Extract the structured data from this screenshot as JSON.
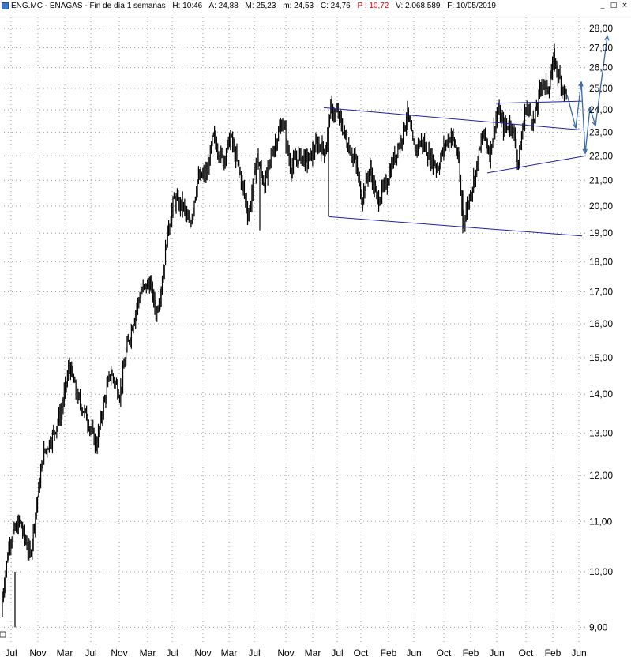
{
  "window": {
    "ticker": "ENG.MC - ENAGAS - Fin de día 1 semanas",
    "H": "H: 10:46",
    "A": "A: 24,88",
    "M": "M: 25,23",
    "m": "m: 24,53",
    "C": "C: 24,76",
    "P": "P : 10,72",
    "V": "V: 2.068.589",
    "F": "F: 10/05/2019",
    "controls": [
      "_",
      "□",
      "×"
    ]
  },
  "chart_data": {
    "type": "candlestick",
    "title": "ENG.MC - ENAGAS",
    "scale": "log",
    "ylim": [
      8.7,
      28.6
    ],
    "ytick_values": [
      9,
      10,
      11,
      12,
      13,
      14,
      15,
      16,
      17,
      18,
      19,
      20,
      21,
      22,
      23,
      24,
      25,
      26,
      27,
      28
    ],
    "ytick_labels": [
      "9,00",
      "10,00",
      "11,00",
      "12,00",
      "13,00",
      "14,00",
      "15,00",
      "16,00",
      "17,00",
      "18,00",
      "19,00",
      "20,00",
      "21,00",
      "22,00",
      "23,00",
      "24,00",
      "25,00",
      "26,00",
      "27,00",
      "28,00"
    ],
    "xtick_labels": [
      "Jul",
      "Nov",
      "Mar",
      "Jul",
      "Nov",
      "Mar",
      "Jul",
      "Nov",
      "Mar",
      "Jul",
      "Nov",
      "Mar",
      "Jul",
      "Oct",
      "Feb",
      "Jun",
      "Oct",
      "Feb",
      "Jun",
      "Oct",
      "Feb",
      "Jun"
    ],
    "grid": true,
    "price_path": [
      [
        0,
        9.2
      ],
      [
        12,
        10.6
      ],
      [
        25,
        11.0
      ],
      [
        38,
        10.3
      ],
      [
        45,
        11.2
      ],
      [
        55,
        12.5
      ],
      [
        68,
        13.0
      ],
      [
        78,
        13.6
      ],
      [
        88,
        14.8
      ],
      [
        98,
        13.9
      ],
      [
        110,
        13.4
      ],
      [
        122,
        12.7
      ],
      [
        130,
        13.6
      ],
      [
        140,
        14.6
      ],
      [
        152,
        14.0
      ],
      [
        160,
        15.2
      ],
      [
        168,
        16.0
      ],
      [
        178,
        17.0
      ],
      [
        190,
        17.3
      ],
      [
        198,
        16.3
      ],
      [
        206,
        17.5
      ],
      [
        212,
        19.0
      ],
      [
        220,
        20.2
      ],
      [
        232,
        20.0
      ],
      [
        240,
        19.2
      ],
      [
        250,
        21.0
      ],
      [
        262,
        21.3
      ],
      [
        270,
        22.8
      ],
      [
        282,
        21.8
      ],
      [
        292,
        22.8
      ],
      [
        305,
        21.1
      ],
      [
        315,
        19.6
      ],
      [
        325,
        22.0
      ],
      [
        335,
        20.8
      ],
      [
        345,
        22.2
      ],
      [
        358,
        23.5
      ],
      [
        368,
        21.5
      ],
      [
        378,
        22.0
      ],
      [
        390,
        21.8
      ],
      [
        402,
        22.5
      ],
      [
        412,
        22.2
      ],
      [
        418,
        24.0
      ],
      [
        428,
        23.8
      ],
      [
        440,
        22.5
      ],
      [
        450,
        21.8
      ],
      [
        458,
        20.3
      ],
      [
        468,
        21.5
      ],
      [
        478,
        20.2
      ],
      [
        488,
        20.8
      ],
      [
        498,
        21.8
      ],
      [
        508,
        22.8
      ],
      [
        516,
        23.8
      ],
      [
        524,
        22.3
      ],
      [
        534,
        22.6
      ],
      [
        544,
        22.0
      ],
      [
        554,
        21.5
      ],
      [
        564,
        22.5
      ],
      [
        572,
        22.9
      ],
      [
        580,
        22.0
      ],
      [
        586,
        19.3
      ],
      [
        594,
        20.3
      ],
      [
        602,
        21.3
      ],
      [
        612,
        23.0
      ],
      [
        620,
        22.1
      ],
      [
        630,
        24.0
      ],
      [
        638,
        23.2
      ],
      [
        648,
        23.4
      ],
      [
        656,
        21.7
      ],
      [
        666,
        24.2
      ],
      [
        676,
        23.4
      ],
      [
        686,
        25.3
      ],
      [
        694,
        25.0
      ],
      [
        702,
        26.4
      ],
      [
        708,
        25.5
      ],
      [
        714,
        24.9
      ],
      [
        718,
        24.76
      ]
    ],
    "trendlines": [
      {
        "from": [
          410,
          24.1
        ],
        "to": [
          737,
          23.1
        ],
        "color": "#1f1fa8"
      },
      {
        "from": [
          416,
          19.6
        ],
        "to": [
          737,
          18.9
        ],
        "color": "#1f1fa8"
      },
      {
        "from": [
          628,
          24.3
        ],
        "to": [
          737,
          24.4
        ],
        "color": "#1f1fa8"
      },
      {
        "from": [
          617,
          21.3
        ],
        "to": [
          742,
          22.0
        ],
        "color": "#1f1fa8"
      }
    ],
    "projection": {
      "color": "#3a6aa8",
      "points": [
        [
          718,
          24.7
        ],
        [
          729,
          23.2
        ],
        [
          736,
          25.3
        ],
        [
          741,
          22.1
        ],
        [
          747,
          24.1
        ],
        [
          754,
          23.3
        ],
        [
          769,
          27.6
        ]
      ]
    }
  }
}
